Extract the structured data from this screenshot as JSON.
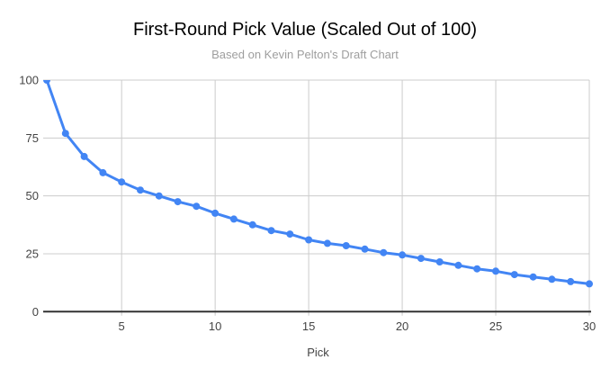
{
  "chart_data": {
    "type": "line",
    "title": "First-Round Pick Value (Scaled Out of 100)",
    "subtitle": "Based on Kevin Pelton's Draft Chart",
    "xlabel": "Pick",
    "ylabel": "",
    "x": [
      1,
      2,
      3,
      4,
      5,
      6,
      7,
      8,
      9,
      10,
      11,
      12,
      13,
      14,
      15,
      16,
      17,
      18,
      19,
      20,
      21,
      22,
      23,
      24,
      25,
      26,
      27,
      28,
      29,
      30
    ],
    "series": [
      {
        "name": "First-round pick value",
        "values": [
          100,
          77,
          67,
          60,
          56,
          52.5,
          50,
          47.5,
          45.5,
          42.5,
          40,
          37.5,
          35,
          33.5,
          31,
          29.5,
          28.5,
          27,
          25.5,
          24.5,
          23,
          21.5,
          20,
          18.5,
          17.5,
          16,
          15,
          14,
          13,
          12
        ]
      }
    ],
    "xlim": [
      1,
      30
    ],
    "ylim": [
      0,
      100
    ],
    "x_ticks": [
      5,
      10,
      15,
      20,
      25,
      30
    ],
    "y_ticks": [
      0,
      25,
      50,
      75,
      100
    ],
    "grid": true,
    "legend_position": "none",
    "marker": "circle",
    "colors": {
      "series": "#4285f4",
      "gridline": "#cccccc",
      "axis_line": "#333333",
      "tick_label": "#444444",
      "title": "#000000",
      "subtitle": "#9e9e9e",
      "background": "#ffffff"
    }
  }
}
